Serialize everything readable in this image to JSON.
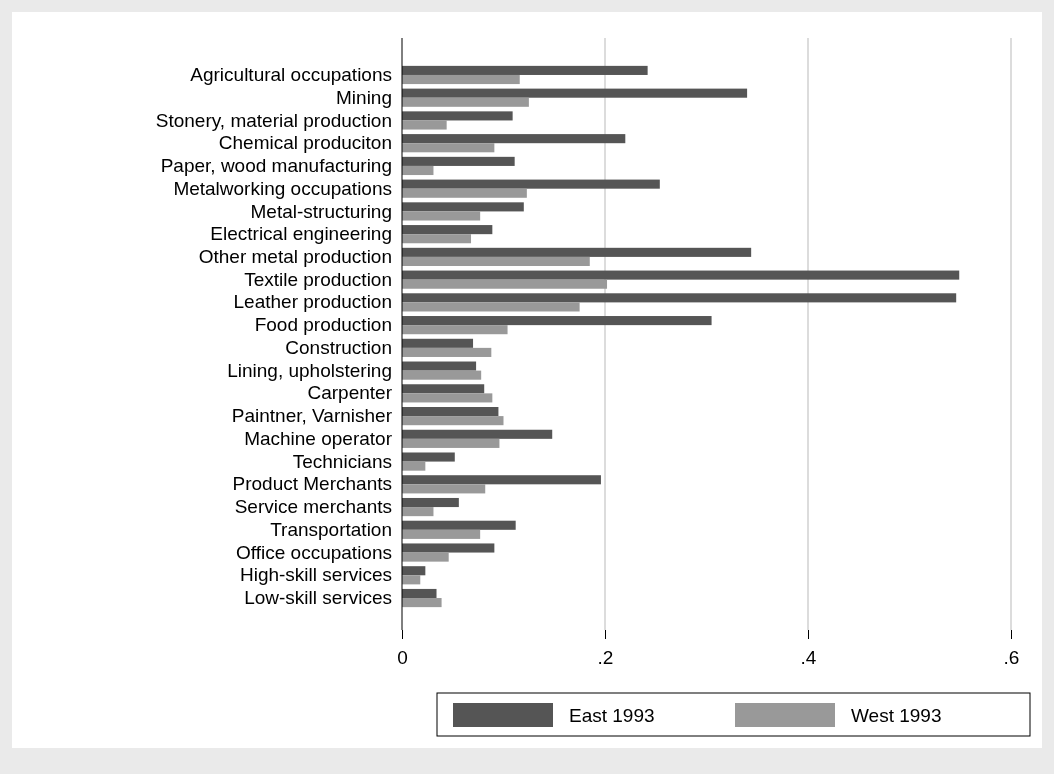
{
  "chart_data": {
    "type": "bar",
    "orientation": "horizontal",
    "categories": [
      "Agricultural occupations",
      "Mining",
      "Stonery, material production",
      "Chemical produciton",
      "Paper, wood manufacturing",
      "Metalworking occupations",
      "Metal-structuring",
      "Electrical engineering",
      "Other metal production",
      "Textile production",
      "Leather production",
      "Food production",
      "Construction",
      "Lining, upholstering",
      "Carpenter",
      "Paintner, Varnisher",
      "Machine operator",
      "Technicians",
      "Product Merchants",
      "Service merchants",
      "Transportation",
      "Office occupations",
      "High-skill services",
      "Low-skill services"
    ],
    "series": [
      {
        "name": "East 1993",
        "color": "#555555",
        "values": [
          0.242,
          0.34,
          0.109,
          0.22,
          0.111,
          0.254,
          0.12,
          0.089,
          0.344,
          0.549,
          0.546,
          0.305,
          0.07,
          0.073,
          0.081,
          0.095,
          0.148,
          0.052,
          0.196,
          0.056,
          0.112,
          0.091,
          0.023,
          0.034
        ]
      },
      {
        "name": "West 1993",
        "color": "#999999",
        "values": [
          0.116,
          0.125,
          0.044,
          0.091,
          0.031,
          0.123,
          0.077,
          0.068,
          0.185,
          0.202,
          0.175,
          0.104,
          0.088,
          0.078,
          0.089,
          0.1,
          0.096,
          0.023,
          0.082,
          0.031,
          0.077,
          0.046,
          0.018,
          0.039
        ]
      }
    ],
    "xlim": [
      0,
      0.6
    ],
    "xticks": [
      0,
      {
        "value": 0.2,
        "label": ".2"
      },
      {
        "value": 0.4,
        "label": ".4"
      },
      {
        "value": 0.6,
        "label": ".6"
      }
    ],
    "grid": "x",
    "legend": "bottom"
  }
}
